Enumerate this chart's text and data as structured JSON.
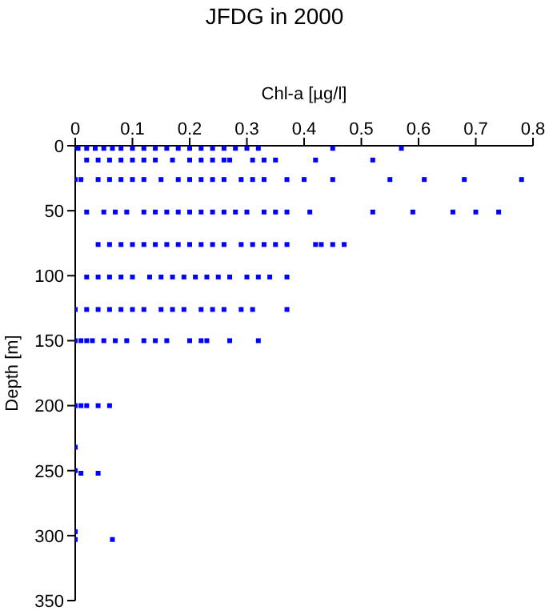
{
  "chart_data": {
    "type": "scatter",
    "title": "JFDG in 2000",
    "xlabel": "Chl-a [µg/l]",
    "ylabel": "Depth [m]",
    "xlim": [
      0,
      0.8
    ],
    "xticks": [
      0,
      0.1,
      0.2,
      0.3,
      0.4,
      0.5,
      0.6,
      0.7,
      0.8
    ],
    "ylim": [
      350,
      0
    ],
    "yticks": [
      0,
      50,
      100,
      150,
      200,
      250,
      300,
      350
    ],
    "grid": false,
    "marker": "square",
    "series": [
      {
        "color": "#0000ff",
        "x": [
          0.005,
          0.02,
          0.035,
          0.05,
          0.065,
          0.08,
          0.1,
          0.12,
          0.14,
          0.16,
          0.18,
          0.2,
          0.22,
          0.24,
          0.26,
          0.28,
          0.3,
          0.32,
          0.45,
          0.57,
          0.02,
          0.04,
          0.06,
          0.08,
          0.1,
          0.12,
          0.14,
          0.17,
          0.2,
          0.22,
          0.24,
          0.26,
          0.27,
          0.31,
          0.33,
          0.35,
          0.42,
          0.52,
          0,
          0.01,
          0.04,
          0.06,
          0.08,
          0.1,
          0.12,
          0.15,
          0.18,
          0.2,
          0.22,
          0.24,
          0.26,
          0.29,
          0.31,
          0.33,
          0.37,
          0.4,
          0.45,
          0.55,
          0.61,
          0.68,
          0.78,
          0.02,
          0.05,
          0.07,
          0.09,
          0.12,
          0.14,
          0.16,
          0.18,
          0.2,
          0.22,
          0.24,
          0.26,
          0.28,
          0.3,
          0.33,
          0.35,
          0.37,
          0.41,
          0.52,
          0.59,
          0.66,
          0.7,
          0.74,
          0.04,
          0.06,
          0.08,
          0.1,
          0.12,
          0.14,
          0.16,
          0.18,
          0.2,
          0.22,
          0.24,
          0.26,
          0.29,
          0.31,
          0.33,
          0.35,
          0.37,
          0.42,
          0.43,
          0.45,
          0.47,
          0.02,
          0.04,
          0.06,
          0.08,
          0.1,
          0.13,
          0.15,
          0.17,
          0.19,
          0.21,
          0.23,
          0.25,
          0.27,
          0.3,
          0.32,
          0.34,
          0.37,
          0,
          0.02,
          0.04,
          0.06,
          0.08,
          0.1,
          0.12,
          0.15,
          0.17,
          0.19,
          0.22,
          0.24,
          0.26,
          0.29,
          0.31,
          0.37,
          0,
          0.01,
          0.02,
          0.03,
          0.05,
          0.07,
          0.09,
          0.12,
          0.14,
          0.16,
          0.2,
          0.22,
          0.23,
          0.27,
          0.32,
          0,
          0.01,
          0.02,
          0.04,
          0.06,
          0,
          0,
          0.01,
          0.04,
          0,
          0,
          0.065
        ],
        "values": [
          2,
          2,
          2,
          2,
          2,
          2,
          2,
          2,
          2,
          2,
          2,
          2,
          2,
          2,
          2,
          2,
          2,
          2,
          2,
          2,
          11,
          11,
          11,
          11,
          11,
          11,
          11,
          11,
          11,
          11,
          11,
          11,
          11,
          11,
          11,
          11,
          11,
          11,
          26,
          26,
          26,
          26,
          26,
          26,
          26,
          26,
          26,
          26,
          26,
          26,
          26,
          26,
          26,
          26,
          26,
          26,
          26,
          26,
          26,
          26,
          26,
          51,
          51,
          51,
          51,
          51,
          51,
          51,
          51,
          51,
          51,
          51,
          51,
          51,
          51,
          51,
          51,
          51,
          51,
          51,
          51,
          51,
          51,
          51,
          76,
          76,
          76,
          76,
          76,
          76,
          76,
          76,
          76,
          76,
          76,
          76,
          76,
          76,
          76,
          76,
          76,
          76,
          76,
          76,
          76,
          101,
          101,
          101,
          101,
          101,
          101,
          101,
          101,
          101,
          101,
          101,
          101,
          101,
          101,
          101,
          101,
          101,
          126,
          126,
          126,
          126,
          126,
          126,
          126,
          126,
          126,
          126,
          126,
          126,
          126,
          126,
          126,
          126,
          150,
          150,
          150,
          150,
          150,
          150,
          150,
          150,
          150,
          150,
          150,
          150,
          150,
          150,
          150,
          200,
          200,
          200,
          200,
          200,
          232,
          250,
          252,
          252,
          297,
          303,
          303
        ]
      }
    ]
  }
}
